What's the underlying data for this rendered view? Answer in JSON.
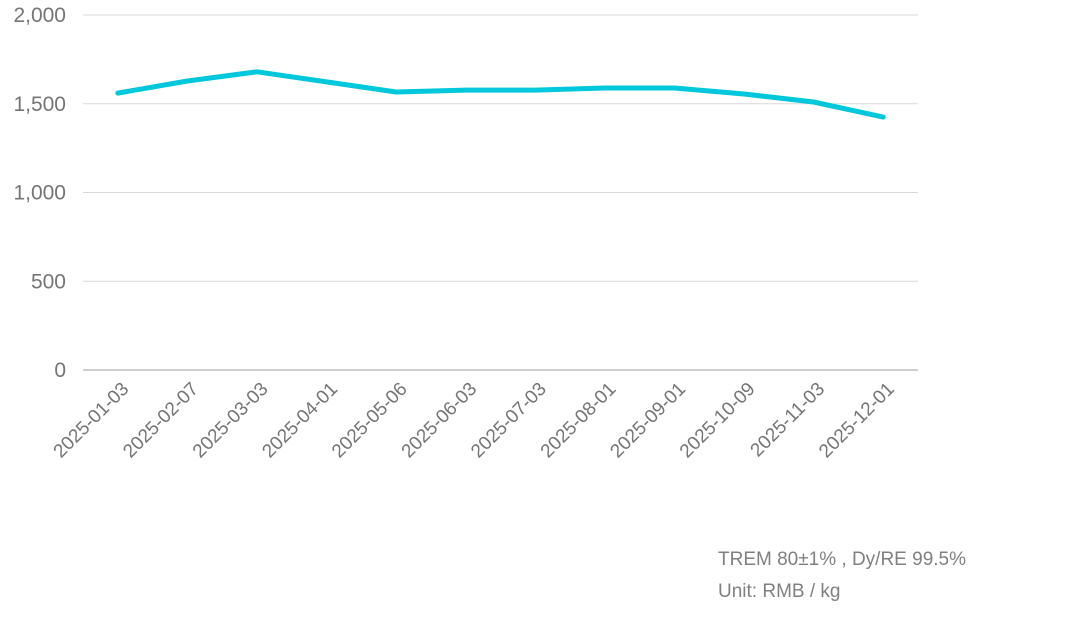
{
  "chart_data": {
    "type": "line",
    "title": "",
    "xlabel": "",
    "ylabel": "",
    "ylim": [
      0,
      2000
    ],
    "yticks": [
      0,
      500,
      1000,
      1500,
      2000
    ],
    "ytick_labels": [
      "0",
      "500",
      "1,000",
      "1,500",
      "2,000"
    ],
    "grid": true,
    "legend": null,
    "categories": [
      "2025-01-03",
      "2025-02-07",
      "2025-03-03",
      "2025-04-01",
      "2025-05-06",
      "2025-06-03",
      "2025-07-03",
      "2025-08-01",
      "2025-09-01",
      "2025-10-09",
      "2025-11-03",
      "2025-12-01"
    ],
    "series": [
      {
        "name": "TREM 80±1%, Dy/RE 99.5%",
        "color": "#00c8dc",
        "values": [
          1560,
          1628,
          1680,
          1623,
          1566,
          1577,
          1577,
          1589,
          1589,
          1555,
          1510,
          1425
        ]
      }
    ]
  },
  "annotations": {
    "line1": "TREM 80±1% , Dy/RE 99.5%",
    "line2": "Unit: RMB / kg"
  },
  "colors": {
    "line": "#00c8dc",
    "grid": "#d9d9d9",
    "axis": "#bfbfbf",
    "text": "#757575"
  }
}
